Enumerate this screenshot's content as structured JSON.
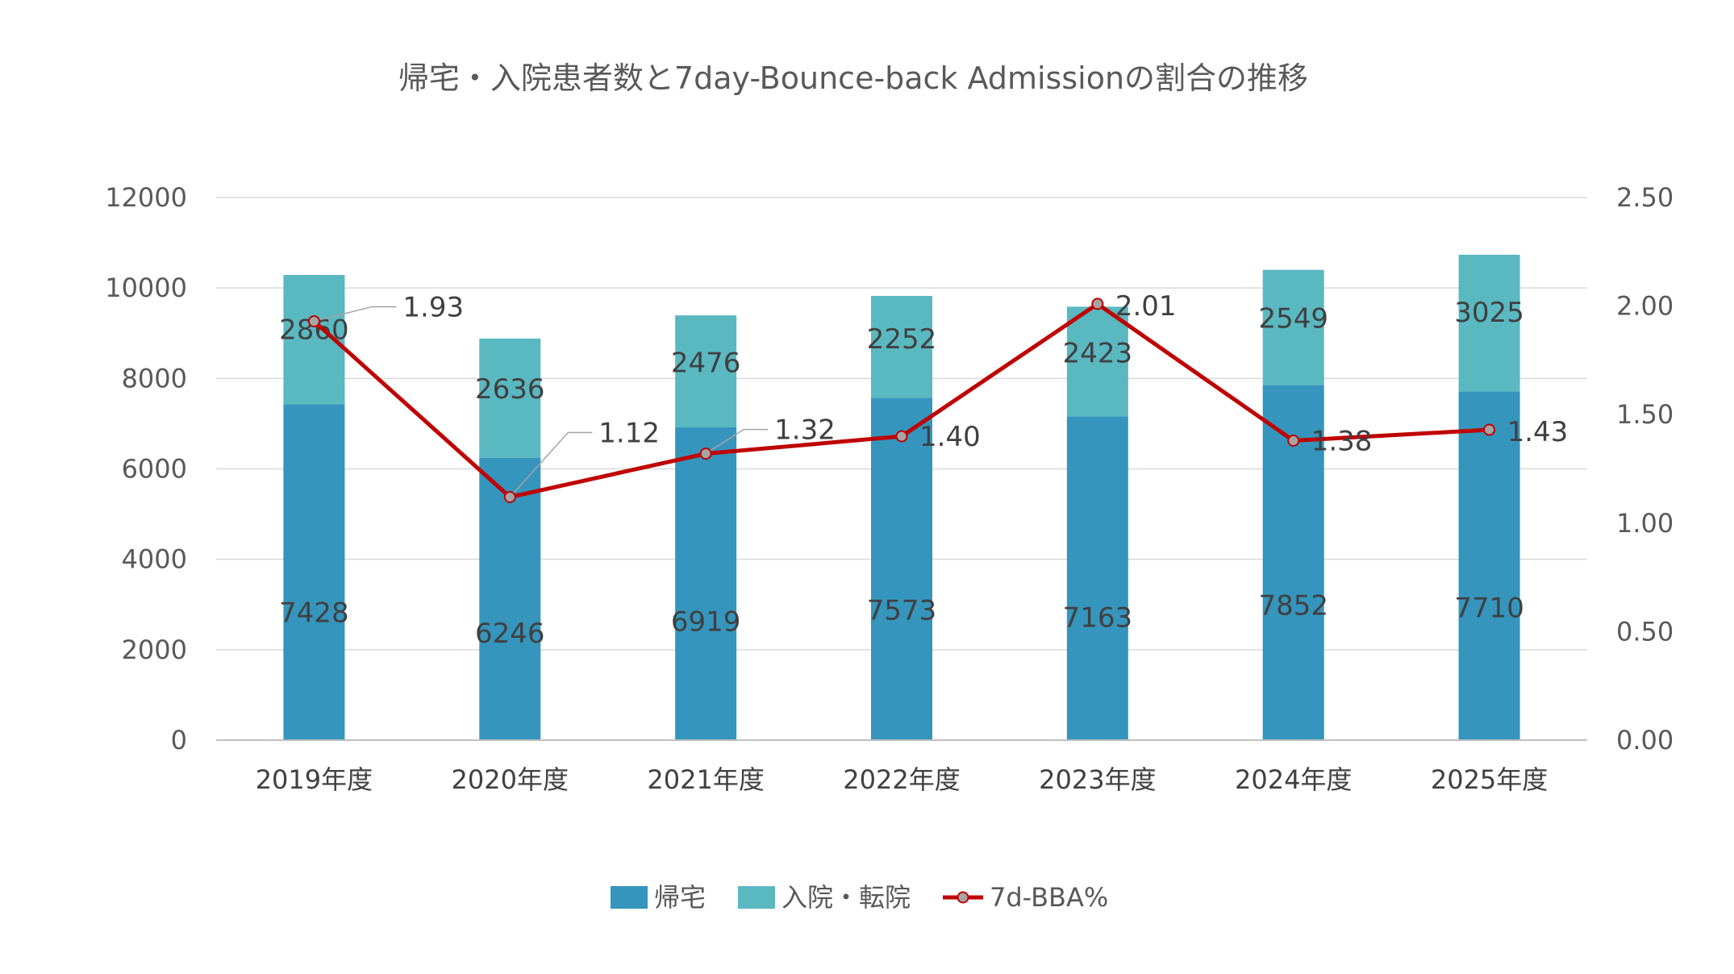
{
  "chart_data": {
    "type": "bar",
    "stacked": true,
    "title": "帰宅・入院患者数と7day-Bounce-back Admissionの割合の推移",
    "categories": [
      "2019年度",
      "2020年度",
      "2021年度",
      "2022年度",
      "2023年度",
      "2024年度",
      "2025年度"
    ],
    "series": [
      {
        "name": "帰宅",
        "kind": "bar",
        "axis": "left",
        "color": "#3595BD",
        "values": [
          7428,
          6246,
          6919,
          7573,
          7163,
          7852,
          7710
        ]
      },
      {
        "name": "入院・転院",
        "kind": "bar",
        "axis": "left",
        "color": "#5AB8C1",
        "values": [
          2860,
          2636,
          2476,
          2252,
          2423,
          2549,
          3025
        ]
      },
      {
        "name": "7d-BBA%",
        "kind": "line",
        "axis": "right",
        "color": "#C00000",
        "marker_color": "#A5A5A5",
        "values": [
          1.93,
          1.12,
          1.32,
          1.4,
          2.01,
          1.38,
          1.43
        ],
        "labels": [
          "1.93",
          "1.12",
          "1.32",
          "1.40",
          "2.01",
          "1.38",
          "1.43"
        ]
      }
    ],
    "y_left": {
      "min": 0,
      "max": 12000,
      "step": 2000,
      "ticks": [
        "0",
        "2000",
        "4000",
        "6000",
        "8000",
        "10000",
        "12000"
      ]
    },
    "y_right": {
      "min": 0,
      "max": 2.5,
      "step": 0.5,
      "ticks": [
        "0.00",
        "0.50",
        "1.00",
        "1.50",
        "2.00",
        "2.50"
      ]
    },
    "grid": true,
    "legend": "bottom-center",
    "gridline_color": "#D9D9D9"
  }
}
